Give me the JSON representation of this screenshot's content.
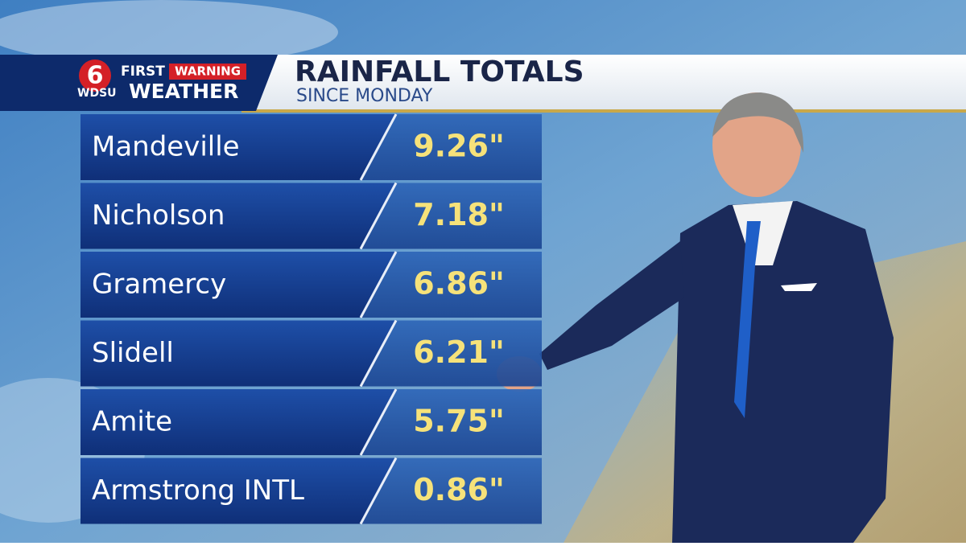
{
  "logo": {
    "number": "6",
    "first": "FIRST",
    "warning": "WARNING",
    "station": "WDSU",
    "weather": "WEATHER"
  },
  "header": {
    "title": "RAINFALL TOTALS",
    "subtitle": "SINCE MONDAY"
  },
  "table": {
    "rows": [
      [
        "Mandeville",
        "9.26\""
      ],
      [
        "Nicholson",
        "7.18\""
      ],
      [
        "Gramercy",
        "6.86\""
      ],
      [
        "Slidell",
        "6.21\""
      ],
      [
        "Amite",
        "5.75\""
      ],
      [
        "Armstrong INTL",
        "0.86\""
      ]
    ]
  }
}
